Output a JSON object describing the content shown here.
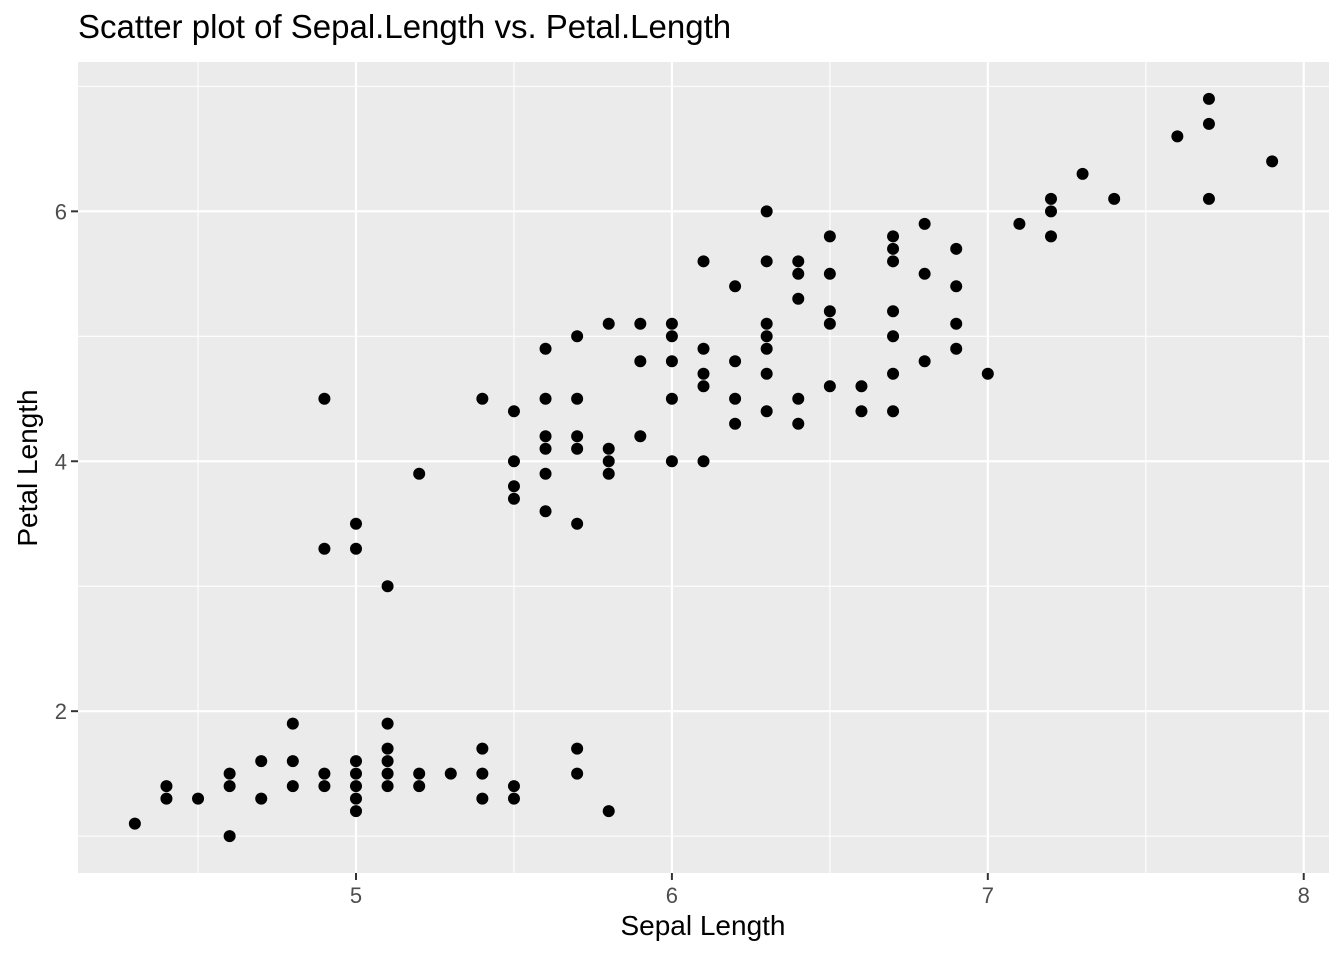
{
  "chart_data": {
    "type": "scatter",
    "title": "Scatter plot of Sepal.Length vs. Petal.Length",
    "xlabel": "Sepal Length",
    "ylabel": "Petal Length",
    "xlim": [
      4.12,
      8.08
    ],
    "ylim": [
      0.705,
      7.195
    ],
    "x_ticks": [
      5,
      6,
      7,
      8
    ],
    "x_minor_ticks": [
      4.5,
      5.5,
      6.5,
      7.5
    ],
    "y_ticks": [
      2,
      4,
      6
    ],
    "y_minor_ticks": [
      1,
      3,
      5,
      7
    ],
    "grid": true,
    "legend": "none",
    "colors": {
      "panel": "#EBEBEB",
      "grid": "#FFFFFF",
      "point": "#000000",
      "tick_text": "#4D4D4D",
      "tick_mark": "#333333"
    },
    "points": [
      [
        4.3,
        1.1
      ],
      [
        4.4,
        1.3
      ],
      [
        4.4,
        1.4
      ],
      [
        4.5,
        1.3
      ],
      [
        4.6,
        1.0
      ],
      [
        4.6,
        1.4
      ],
      [
        4.6,
        1.5
      ],
      [
        4.7,
        1.3
      ],
      [
        4.7,
        1.6
      ],
      [
        4.8,
        1.4
      ],
      [
        4.8,
        1.6
      ],
      [
        4.8,
        1.9
      ],
      [
        4.9,
        1.4
      ],
      [
        4.9,
        1.5
      ],
      [
        4.9,
        3.3
      ],
      [
        4.9,
        4.5
      ],
      [
        5.0,
        1.2
      ],
      [
        5.0,
        1.3
      ],
      [
        5.0,
        1.4
      ],
      [
        5.0,
        1.5
      ],
      [
        5.0,
        1.6
      ],
      [
        5.0,
        3.3
      ],
      [
        5.0,
        3.5
      ],
      [
        5.1,
        1.4
      ],
      [
        5.1,
        1.5
      ],
      [
        5.1,
        1.6
      ],
      [
        5.1,
        1.7
      ],
      [
        5.1,
        1.9
      ],
      [
        5.1,
        3.0
      ],
      [
        5.2,
        1.4
      ],
      [
        5.2,
        1.5
      ],
      [
        5.2,
        3.9
      ],
      [
        5.3,
        1.5
      ],
      [
        5.4,
        1.3
      ],
      [
        5.4,
        1.5
      ],
      [
        5.4,
        1.7
      ],
      [
        5.4,
        4.5
      ],
      [
        5.5,
        1.3
      ],
      [
        5.5,
        1.4
      ],
      [
        5.5,
        3.7
      ],
      [
        5.5,
        3.8
      ],
      [
        5.5,
        4.0
      ],
      [
        5.5,
        4.4
      ],
      [
        5.6,
        3.6
      ],
      [
        5.6,
        3.9
      ],
      [
        5.6,
        4.1
      ],
      [
        5.6,
        4.2
      ],
      [
        5.6,
        4.5
      ],
      [
        5.6,
        4.9
      ],
      [
        5.7,
        1.5
      ],
      [
        5.7,
        1.7
      ],
      [
        5.7,
        3.5
      ],
      [
        5.7,
        4.1
      ],
      [
        5.7,
        4.2
      ],
      [
        5.7,
        4.5
      ],
      [
        5.7,
        5.0
      ],
      [
        5.8,
        1.2
      ],
      [
        5.8,
        3.9
      ],
      [
        5.8,
        4.0
      ],
      [
        5.8,
        4.1
      ],
      [
        5.8,
        5.1
      ],
      [
        5.9,
        4.2
      ],
      [
        5.9,
        4.8
      ],
      [
        5.9,
        5.1
      ],
      [
        6.0,
        4.0
      ],
      [
        6.0,
        4.5
      ],
      [
        6.0,
        4.8
      ],
      [
        6.0,
        5.0
      ],
      [
        6.0,
        5.1
      ],
      [
        6.1,
        4.0
      ],
      [
        6.1,
        4.6
      ],
      [
        6.1,
        4.7
      ],
      [
        6.1,
        4.9
      ],
      [
        6.1,
        5.6
      ],
      [
        6.2,
        4.3
      ],
      [
        6.2,
        4.5
      ],
      [
        6.2,
        4.8
      ],
      [
        6.2,
        5.4
      ],
      [
        6.3,
        4.4
      ],
      [
        6.3,
        4.7
      ],
      [
        6.3,
        4.9
      ],
      [
        6.3,
        5.0
      ],
      [
        6.3,
        5.1
      ],
      [
        6.3,
        5.6
      ],
      [
        6.3,
        6.0
      ],
      [
        6.4,
        4.3
      ],
      [
        6.4,
        4.5
      ],
      [
        6.4,
        5.3
      ],
      [
        6.4,
        5.5
      ],
      [
        6.4,
        5.6
      ],
      [
        6.5,
        4.6
      ],
      [
        6.5,
        5.1
      ],
      [
        6.5,
        5.2
      ],
      [
        6.5,
        5.5
      ],
      [
        6.5,
        5.8
      ],
      [
        6.6,
        4.4
      ],
      [
        6.6,
        4.6
      ],
      [
        6.7,
        4.4
      ],
      [
        6.7,
        4.7
      ],
      [
        6.7,
        5.0
      ],
      [
        6.7,
        5.2
      ],
      [
        6.7,
        5.6
      ],
      [
        6.7,
        5.7
      ],
      [
        6.7,
        5.8
      ],
      [
        6.8,
        4.8
      ],
      [
        6.8,
        5.5
      ],
      [
        6.8,
        5.9
      ],
      [
        6.9,
        4.9
      ],
      [
        6.9,
        5.1
      ],
      [
        6.9,
        5.4
      ],
      [
        6.9,
        5.7
      ],
      [
        7.0,
        4.7
      ],
      [
        7.1,
        5.9
      ],
      [
        7.2,
        5.8
      ],
      [
        7.2,
        6.0
      ],
      [
        7.2,
        6.1
      ],
      [
        7.3,
        6.3
      ],
      [
        7.4,
        6.1
      ],
      [
        7.6,
        6.6
      ],
      [
        7.7,
        6.1
      ],
      [
        7.7,
        6.7
      ],
      [
        7.7,
        6.9
      ],
      [
        7.9,
        6.4
      ]
    ]
  }
}
